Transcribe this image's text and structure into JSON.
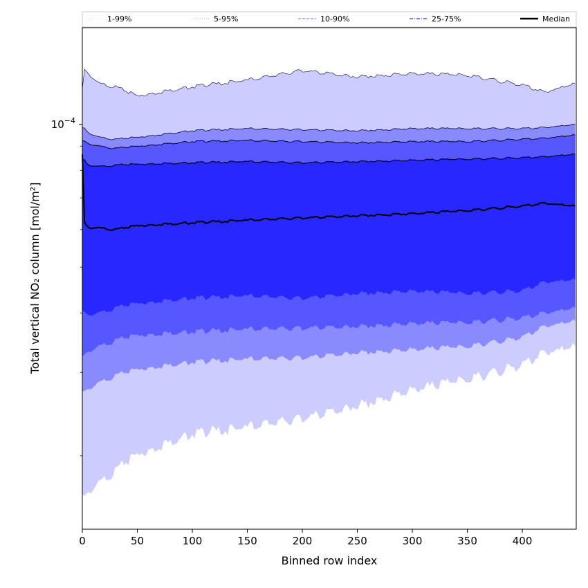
{
  "chart_data": {
    "type": "area",
    "xlabel": "Binned row index",
    "ylabel": "Total vertical NO₂ column [mol/m²]",
    "xlim": [
      0,
      449
    ],
    "x_ticks": [
      "0",
      "50",
      "100",
      "150",
      "200",
      "250",
      "300",
      "350",
      "400"
    ],
    "y_scale": "log",
    "ylim": [
      1.4e-05,
      0.00016
    ],
    "y_ticks": [
      {
        "base": "10",
        "exponent": "−4",
        "value": 0.0001
      }
    ],
    "legend_position": "top",
    "legend": [
      {
        "label": "1-99%",
        "style": "dotted-thin",
        "color": "#c8c8c8"
      },
      {
        "label": "5-95%",
        "style": "dotted",
        "color": "#aaaaff"
      },
      {
        "label": "10-90%",
        "style": "dashed",
        "color": "#8888ff"
      },
      {
        "label": "25-75%",
        "style": "dashdot",
        "color": "#5555ee"
      },
      {
        "label": "Median",
        "style": "solid",
        "color": "#000000"
      }
    ],
    "x": [
      0,
      2,
      5,
      15,
      30,
      50,
      100,
      150,
      200,
      250,
      300,
      350,
      400,
      420,
      449
    ],
    "series": [
      {
        "name": "P99",
        "values": [
          0.000118,
          0.00013,
          0.000128,
          0.000122,
          0.00012,
          0.000115,
          0.00012,
          0.000124,
          0.00013,
          0.000126,
          0.000128,
          0.000127,
          0.000121,
          0.000117,
          0.000122
        ]
      },
      {
        "name": "P95",
        "values": [
          9.8e-05,
          9.8e-05,
          9.6e-05,
          9.4e-05,
          9.3e-05,
          9.4e-05,
          9.7e-05,
          9.8e-05,
          9.75e-05,
          9.7e-05,
          9.8e-05,
          9.8e-05,
          9.8e-05,
          9.85e-05,
          0.0001
        ]
      },
      {
        "name": "P90",
        "values": [
          9.2e-05,
          9.2e-05,
          9.1e-05,
          9e-05,
          8.9e-05,
          9e-05,
          9.2e-05,
          9.25e-05,
          9.2e-05,
          9.15e-05,
          9.2e-05,
          9.2e-05,
          9.3e-05,
          9.35e-05,
          9.5e-05
        ]
      },
      {
        "name": "P75",
        "values": [
          8.4e-05,
          8.4e-05,
          8.2e-05,
          8.15e-05,
          8.2e-05,
          8.25e-05,
          8.3e-05,
          8.35e-05,
          8.3e-05,
          8.35e-05,
          8.4e-05,
          8.45e-05,
          8.5e-05,
          8.55e-05,
          8.65e-05
        ]
      },
      {
        "name": "Median",
        "values": [
          8.6e-05,
          6.2e-05,
          6.05e-05,
          6.05e-05,
          6e-05,
          6.12e-05,
          6.2e-05,
          6.28e-05,
          6.35e-05,
          6.42e-05,
          6.48e-05,
          6.58e-05,
          6.72e-05,
          6.82e-05,
          6.72e-05
        ]
      },
      {
        "name": "P25",
        "values": [
          4e-05,
          4e-05,
          3.95e-05,
          4e-05,
          4.1e-05,
          4.2e-05,
          4.3e-05,
          4.35e-05,
          4.3e-05,
          4.4e-05,
          4.45e-05,
          4.4e-05,
          4.45e-05,
          4.65e-05,
          4.7e-05
        ]
      },
      {
        "name": "P10",
        "values": [
          3.2e-05,
          3.25e-05,
          3.3e-05,
          3.4e-05,
          3.5e-05,
          3.6e-05,
          3.65e-05,
          3.7e-05,
          3.72e-05,
          3.75e-05,
          3.8e-05,
          3.82e-05,
          3.9e-05,
          4e-05,
          4.1e-05
        ]
      },
      {
        "name": "P5",
        "values": [
          2.7e-05,
          2.72e-05,
          2.75e-05,
          2.85e-05,
          2.95e-05,
          3.05e-05,
          3.15e-05,
          3.2e-05,
          3.22e-05,
          3.3e-05,
          3.35e-05,
          3.4e-05,
          3.55e-05,
          3.75e-05,
          3.85e-05
        ]
      },
      {
        "name": "P1",
        "values": [
          1.62e-05,
          1.62e-05,
          1.66e-05,
          1.75e-05,
          1.86e-05,
          2.02e-05,
          2.22e-05,
          2.3e-05,
          2.4e-05,
          2.55e-05,
          2.75e-05,
          2.9e-05,
          3.1e-05,
          3.3e-05,
          3.4e-05
        ]
      }
    ],
    "band_colors": [
      "#ccccff",
      "#8a8aff",
      "#5757ff",
      "#2727ff"
    ]
  }
}
